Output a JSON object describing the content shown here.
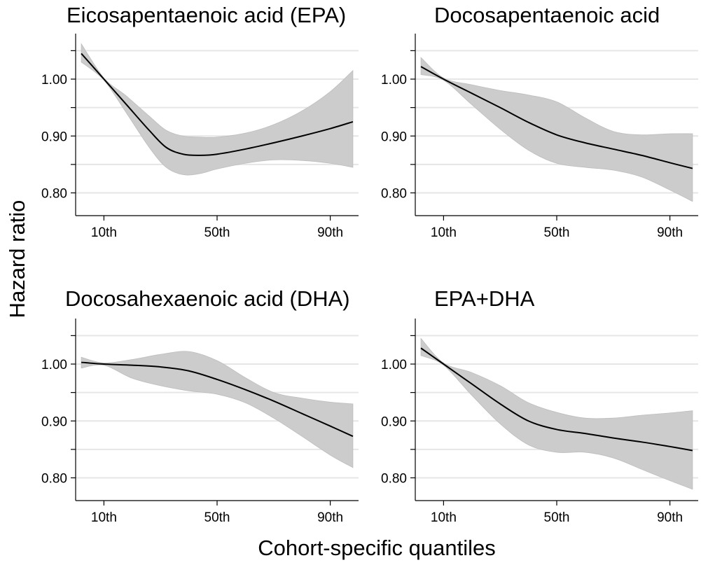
{
  "figure": {
    "ylabel": "Hazard ratio",
    "xlabel": "Cohort-specific quantiles"
  },
  "chart_data": [
    {
      "type": "line",
      "title": "Eicosapentaenoic acid (EPA)",
      "xlabel": "Cohort-specific quantiles",
      "ylabel": "Hazard ratio",
      "x_ticks": [
        {
          "value": 10,
          "label": "10th"
        },
        {
          "value": 50,
          "label": "50th"
        },
        {
          "value": 90,
          "label": "90th"
        }
      ],
      "y_ticks": [
        {
          "value": 0.8,
          "label": "0.80"
        },
        {
          "value": 0.9,
          "label": "0.90"
        },
        {
          "value": 1.0,
          "label": "1.00"
        }
      ],
      "xlim": [
        0,
        100
      ],
      "ylim": [
        0.76,
        1.08
      ],
      "grid": true,
      "series": [
        {
          "x": [
            2,
            10,
            18,
            26,
            32,
            38,
            44,
            50,
            60,
            70,
            80,
            90,
            98
          ],
          "y": [
            1.045,
            1.0,
            0.955,
            0.91,
            0.88,
            0.868,
            0.866,
            0.868,
            0.877,
            0.888,
            0.9,
            0.913,
            0.925
          ],
          "lower": [
            1.03,
            0.998,
            0.94,
            0.88,
            0.845,
            0.832,
            0.834,
            0.842,
            0.852,
            0.858,
            0.857,
            0.852,
            0.845
          ],
          "upper": [
            1.062,
            1.002,
            0.97,
            0.935,
            0.91,
            0.9,
            0.898,
            0.898,
            0.905,
            0.92,
            0.944,
            0.978,
            1.015
          ]
        }
      ]
    },
    {
      "type": "line",
      "title": "Docosapentaenoic acid",
      "xlabel": "Cohort-specific quantiles",
      "ylabel": "Hazard ratio",
      "x_ticks": [
        {
          "value": 10,
          "label": "10th"
        },
        {
          "value": 50,
          "label": "50th"
        },
        {
          "value": 90,
          "label": "90th"
        }
      ],
      "y_ticks": [
        {
          "value": 0.8,
          "label": "0.80"
        },
        {
          "value": 0.9,
          "label": "0.90"
        },
        {
          "value": 1.0,
          "label": "1.00"
        }
      ],
      "xlim": [
        0,
        100
      ],
      "ylim": [
        0.76,
        1.08
      ],
      "grid": true,
      "series": [
        {
          "x": [
            2,
            10,
            20,
            30,
            40,
            50,
            60,
            70,
            80,
            90,
            98
          ],
          "y": [
            1.022,
            1.0,
            0.975,
            0.95,
            0.924,
            0.902,
            0.888,
            0.877,
            0.866,
            0.853,
            0.843
          ],
          "lower": [
            1.008,
            0.998,
            0.955,
            0.912,
            0.875,
            0.852,
            0.845,
            0.84,
            0.828,
            0.805,
            0.785
          ],
          "upper": [
            1.038,
            1.002,
            0.99,
            0.98,
            0.972,
            0.96,
            0.932,
            0.908,
            0.902,
            0.904,
            0.904
          ]
        }
      ]
    },
    {
      "type": "line",
      "title": "Docosahexaenoic acid (DHA)",
      "xlabel": "Cohort-specific quantiles",
      "ylabel": "Hazard ratio",
      "x_ticks": [
        {
          "value": 10,
          "label": "10th"
        },
        {
          "value": 50,
          "label": "50th"
        },
        {
          "value": 90,
          "label": "90th"
        }
      ],
      "y_ticks": [
        {
          "value": 0.8,
          "label": "0.80"
        },
        {
          "value": 0.9,
          "label": "0.90"
        },
        {
          "value": 1.0,
          "label": "1.00"
        }
      ],
      "xlim": [
        0,
        100
      ],
      "ylim": [
        0.76,
        1.08
      ],
      "grid": true,
      "series": [
        {
          "x": [
            2,
            10,
            20,
            30,
            40,
            50,
            60,
            70,
            80,
            90,
            98
          ],
          "y": [
            1.003,
            1.0,
            0.998,
            0.995,
            0.988,
            0.973,
            0.955,
            0.935,
            0.913,
            0.891,
            0.873
          ],
          "lower": [
            0.993,
            0.998,
            0.975,
            0.962,
            0.953,
            0.947,
            0.932,
            0.905,
            0.873,
            0.84,
            0.818
          ],
          "upper": [
            1.012,
            1.002,
            1.008,
            1.017,
            1.022,
            1.006,
            0.976,
            0.95,
            0.94,
            0.933,
            0.93
          ]
        }
      ]
    },
    {
      "type": "line",
      "title": "EPA+DHA",
      "xlabel": "Cohort-specific quantiles",
      "ylabel": "Hazard ratio",
      "x_ticks": [
        {
          "value": 10,
          "label": "10th"
        },
        {
          "value": 50,
          "label": "50th"
        },
        {
          "value": 90,
          "label": "90th"
        }
      ],
      "y_ticks": [
        {
          "value": 0.8,
          "label": "0.80"
        },
        {
          "value": 0.9,
          "label": "0.90"
        },
        {
          "value": 1.0,
          "label": "1.00"
        }
      ],
      "xlim": [
        0,
        100
      ],
      "ylim": [
        0.76,
        1.08
      ],
      "grid": true,
      "series": [
        {
          "x": [
            2,
            10,
            20,
            30,
            40,
            50,
            60,
            70,
            80,
            90,
            98
          ],
          "y": [
            1.028,
            1.0,
            0.965,
            0.93,
            0.9,
            0.885,
            0.878,
            0.87,
            0.863,
            0.855,
            0.848
          ],
          "lower": [
            1.015,
            0.998,
            0.945,
            0.895,
            0.858,
            0.845,
            0.845,
            0.835,
            0.815,
            0.795,
            0.78
          ],
          "upper": [
            1.045,
            1.002,
            0.985,
            0.962,
            0.932,
            0.915,
            0.905,
            0.905,
            0.91,
            0.914,
            0.918
          ]
        }
      ]
    }
  ]
}
